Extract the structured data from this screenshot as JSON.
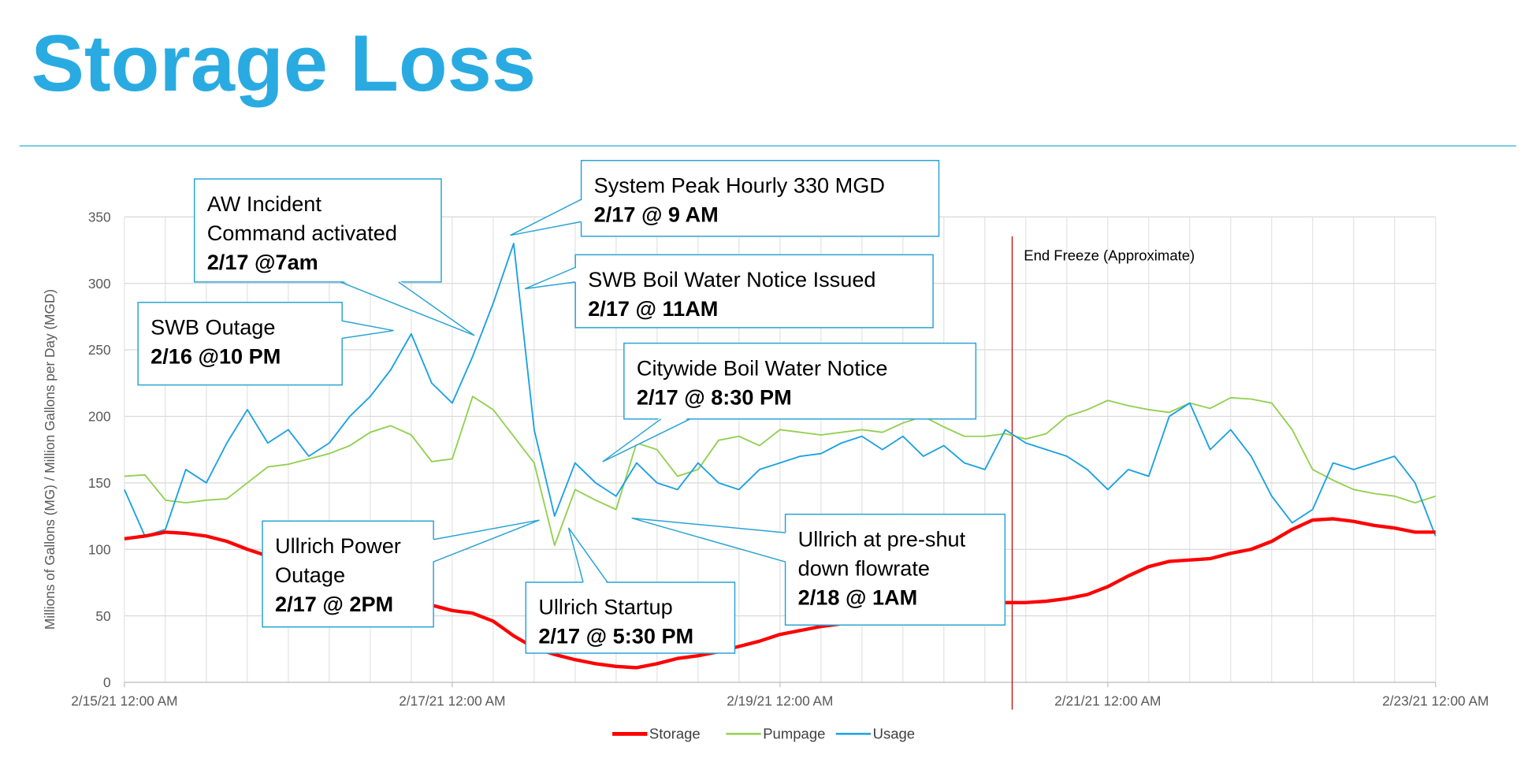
{
  "header": {
    "title": "Storage Loss"
  },
  "chart_data": {
    "type": "line",
    "y_label": "Millions of Gallons (MG) / Million Gallons per Day (MGD)",
    "x": [
      "2/15/21 12:00 AM",
      "2/15/21 3:00 AM",
      "2/15/21 6:00 AM",
      "2/15/21 9:00 AM",
      "2/15/21 12:00 PM",
      "2/15/21 3:00 PM",
      "2/15/21 6:00 PM",
      "2/15/21 9:00 PM",
      "2/16/21 12:00 AM",
      "2/16/21 3:00 AM",
      "2/16/21 6:00 AM",
      "2/16/21 9:00 AM",
      "2/16/21 12:00 PM",
      "2/16/21 3:00 PM",
      "2/16/21 6:00 PM",
      "2/16/21 9:00 PM",
      "2/17/21 12:00 AM",
      "2/17/21 3:00 AM",
      "2/17/21 6:00 AM",
      "2/17/21 9:00 AM",
      "2/17/21 12:00 PM",
      "2/17/21 3:00 PM",
      "2/17/21 6:00 PM",
      "2/17/21 9:00 PM",
      "2/18/21 12:00 AM",
      "2/18/21 3:00 AM",
      "2/18/21 6:00 AM",
      "2/18/21 9:00 AM",
      "2/18/21 12:00 PM",
      "2/18/21 3:00 PM",
      "2/18/21 6:00 PM",
      "2/18/21 9:00 PM",
      "2/19/21 12:00 AM",
      "2/19/21 3:00 AM",
      "2/19/21 6:00 AM",
      "2/19/21 9:00 AM",
      "2/19/21 12:00 PM",
      "2/19/21 3:00 PM",
      "2/19/21 6:00 PM",
      "2/19/21 9:00 PM",
      "2/20/21 12:00 AM",
      "2/20/21 3:00 AM",
      "2/20/21 6:00 AM",
      "2/20/21 9:00 AM",
      "2/20/21 12:00 PM",
      "2/20/21 3:00 PM",
      "2/20/21 6:00 PM",
      "2/20/21 9:00 PM",
      "2/21/21 12:00 AM",
      "2/21/21 3:00 AM",
      "2/21/21 6:00 AM",
      "2/21/21 9:00 AM",
      "2/21/21 12:00 PM",
      "2/21/21 3:00 PM",
      "2/21/21 6:00 PM",
      "2/21/21 9:00 PM",
      "2/22/21 12:00 AM",
      "2/22/21 3:00 AM",
      "2/22/21 6:00 AM",
      "2/22/21 9:00 AM",
      "2/22/21 12:00 PM",
      "2/22/21 3:00 PM",
      "2/22/21 6:00 PM",
      "2/22/21 9:00 PM",
      "2/23/21 12:00 AM"
    ],
    "series": [
      {
        "name": "Storage",
        "color": "#ff0000",
        "values": [
          108,
          110,
          113,
          112,
          110,
          106,
          100,
          95,
          90,
          85,
          80,
          75,
          70,
          66,
          62,
          58,
          54,
          52,
          46,
          35,
          26,
          21,
          17,
          14,
          12,
          11,
          14,
          18,
          20,
          23,
          27,
          31,
          36,
          39,
          42,
          44,
          47,
          49,
          52,
          54,
          56,
          58,
          59,
          60,
          60,
          61,
          63,
          66,
          72,
          80,
          87,
          91,
          92,
          93,
          97,
          100,
          106,
          115,
          122,
          123,
          121,
          118,
          116,
          113,
          113
        ]
      },
      {
        "name": "Pumpage",
        "color": "#92d050",
        "values": [
          155,
          156,
          137,
          135,
          137,
          138,
          150,
          162,
          164,
          168,
          172,
          178,
          188,
          193,
          186,
          166,
          168,
          215,
          205,
          185,
          165,
          103,
          145,
          137,
          130,
          180,
          175,
          155,
          160,
          182,
          185,
          178,
          190,
          188,
          186,
          188,
          190,
          188,
          195,
          200,
          192,
          185,
          185,
          187,
          183,
          187,
          200,
          205,
          212,
          208,
          205,
          203,
          210,
          206,
          214,
          213,
          210,
          190,
          160,
          152,
          145,
          142,
          140,
          135,
          140
        ]
      },
      {
        "name": "Usage",
        "color": "#1ba1e2",
        "values": [
          145,
          110,
          115,
          160,
          150,
          180,
          205,
          180,
          190,
          170,
          180,
          200,
          215,
          235,
          262,
          225,
          210,
          245,
          285,
          330,
          190,
          125,
          165,
          150,
          140,
          165,
          150,
          145,
          165,
          150,
          145,
          160,
          165,
          170,
          172,
          180,
          185,
          175,
          185,
          170,
          178,
          165,
          160,
          190,
          180,
          175,
          170,
          160,
          145,
          160,
          155,
          200,
          210,
          175,
          190,
          170,
          140,
          120,
          130,
          165,
          160,
          165,
          170,
          150,
          110
        ]
      }
    ],
    "xlim": [
      "2/15/21 12:00 AM",
      "2/23/21 12:00 AM"
    ],
    "xticks": [
      "2/15/21 12:00 AM",
      "2/17/21 12:00 AM",
      "2/19/21 12:00 AM",
      "2/21/21 12:00 AM",
      "2/23/21 12:00 AM"
    ],
    "ylim": [
      0,
      350
    ],
    "yticks": [
      0,
      50,
      100,
      150,
      200,
      250,
      300,
      350
    ],
    "grid": true,
    "legend": "bottom",
    "marker_line": {
      "label": "End Freeze (Approximate)",
      "x": "2/20/21 10:00 AM",
      "color": "#c00000"
    },
    "annotations": [
      {
        "lines": [
          "AW Incident",
          "Command activated"
        ],
        "date": "2/17 @7am"
      },
      {
        "lines": [
          "System Peak Hourly 330 MGD"
        ],
        "date": "2/17 @ 9 AM"
      },
      {
        "lines": [
          "SWB Boil Water Notice Issued"
        ],
        "date": "2/17 @ 11AM"
      },
      {
        "lines": [
          "SWB  Outage"
        ],
        "date": "2/16 @10 PM"
      },
      {
        "lines": [
          "Citywide Boil Water Notice"
        ],
        "date": "2/17 @ 8:30 PM"
      },
      {
        "lines": [
          "Ullrich Power",
          "Outage"
        ],
        "date": "2/17 @ 2PM"
      },
      {
        "lines": [
          "Ullrich Startup"
        ],
        "date": "2/17 @ 5:30 PM"
      },
      {
        "lines": [
          "Ullrich at pre-shut",
          "down flowrate"
        ],
        "date": "2/18 @ 1AM"
      }
    ]
  }
}
